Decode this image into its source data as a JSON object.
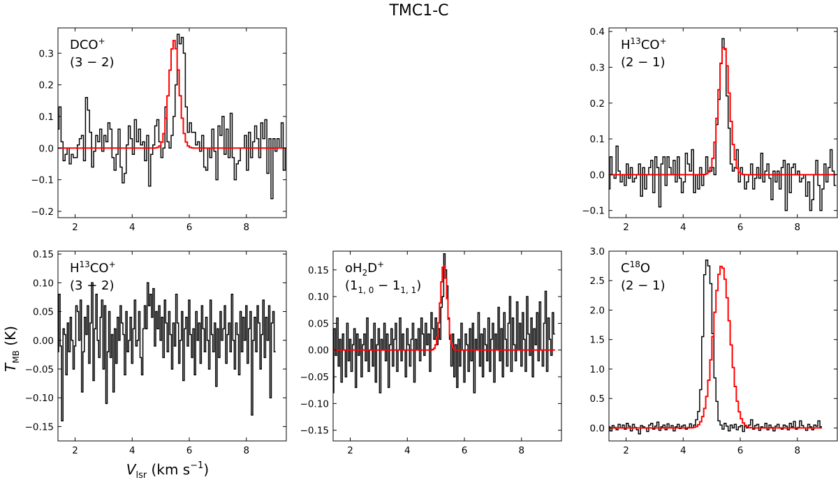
{
  "figure_title": "TMC1-C",
  "axes": {
    "xlabel_main": "V",
    "xlabel_sub": "lsr",
    "xlabel_units": " (km s",
    "xlabel_exp": "−1",
    "xlabel_close": ")",
    "ylabel_main": "T",
    "ylabel_sub": "MB",
    "ylabel_units": " (K)"
  },
  "colors": {
    "data": "#000000",
    "fit": "#ff0000"
  },
  "chart_data": [
    {
      "id": "dco",
      "type": "line",
      "title_parts": [
        "DCO",
        "+"
      ],
      "transition": "(3 − 2)",
      "xlim": [
        1.4,
        9.4
      ],
      "ylim": [
        -0.22,
        0.38
      ],
      "xticks": [
        2,
        4,
        6,
        8
      ],
      "yticks": [
        -0.2,
        -0.1,
        0.0,
        0.1,
        0.2,
        0.3
      ],
      "ytick_labels": [
        "−0.2",
        "−0.1",
        "0.0",
        "0.1",
        "0.2",
        "0.3"
      ],
      "xtick_labels": [
        "2",
        "4",
        "6",
        "8"
      ],
      "x_start": 1.4,
      "x_step": 0.0714,
      "values": [
        0.06,
        0.13,
        0.02,
        -0.04,
        -0.02,
        0.0,
        -0.05,
        -0.02,
        -0.03,
        -0.03,
        0.01,
        0.03,
        0.04,
        -0.04,
        0.16,
        0.12,
        0.05,
        -0.06,
        -0.01,
        0.04,
        0.02,
        0.06,
        -0.01,
        0.04,
        0.02,
        0.08,
        0.06,
        -0.03,
        -0.07,
        -0.02,
        0.06,
        -0.06,
        -0.11,
        -0.08,
        0.01,
        0.07,
        0.03,
        -0.02,
        0.09,
        0.02,
        0.06,
        0.01,
        0.02,
        -0.04,
        0.04,
        -0.12,
        -0.02,
        0.01,
        0.07,
        0.09,
        0.02,
        -0.03,
        0.0,
        0.13,
        0.02,
        0.0,
        0.04,
        0.1,
        0.2,
        0.36,
        0.33,
        0.35,
        0.3,
        0.13,
        0.05,
        0.08,
        0.05,
        0.05,
        0.01,
        0.02,
        -0.01,
        0.04,
        -0.06,
        -0.07,
        0.0,
        -0.03,
        0.06,
        -0.01,
        -0.1,
        0.07,
        0.04,
        0.1,
        -0.02,
        0.06,
        -0.03,
        0.11,
        -0.03,
        -0.1,
        -0.05,
        -0.04,
        0.0,
        0.0,
        0.04,
        -0.07,
        0.05,
        -0.03,
        0.02,
        0.07,
        0.03,
        -0.03,
        0.08,
        0.03,
        0.09,
        -0.08,
        0.03,
        -0.16,
        0.03,
        -0.01,
        0.03,
        0.0,
        0.08,
        -0.07,
        0.0,
        -0.03,
        0.13,
        0.02
      ],
      "fit": {
        "amplitude": 0.34,
        "center": 5.47,
        "fwhm": 0.42,
        "baseline": 0.0
      }
    },
    {
      "id": "h13co-21",
      "type": "line",
      "title_parts": [
        "H",
        "13",
        "CO",
        "+"
      ],
      "transition": "(2 − 1)",
      "xlim": [
        1.4,
        9.4
      ],
      "ylim": [
        -0.12,
        0.41
      ],
      "xticks": [
        2,
        4,
        6,
        8
      ],
      "yticks": [
        -0.1,
        0.0,
        0.1,
        0.2,
        0.3,
        0.4
      ],
      "ytick_labels": [
        "−0.1",
        "0.0",
        "0.1",
        "0.2",
        "0.3",
        "0.4"
      ],
      "xtick_labels": [
        "2",
        "4",
        "6",
        "8"
      ],
      "x_start": 1.4,
      "x_step": 0.0714,
      "values": [
        -0.04,
        0.05,
        0.0,
        -0.01,
        0.08,
        0.01,
        -0.02,
        0.0,
        -0.03,
        0.03,
        -0.01,
        0.02,
        -0.02,
        -0.01,
        0.0,
        0.03,
        -0.06,
        0.02,
        -0.04,
        0.0,
        0.02,
        0.04,
        -0.05,
        0.05,
        0.02,
        -0.09,
        0.03,
        0.05,
        -0.03,
        0.05,
        0.02,
        0.0,
        0.04,
        -0.02,
        0.05,
        -0.01,
        -0.05,
        -0.02,
        0.06,
        0.03,
        0.01,
        0.07,
        -0.05,
        0.0,
        -0.04,
        0.02,
        -0.03,
        0.0,
        0.05,
        0.01,
        0.01,
        0.02,
        0.0,
        0.14,
        0.21,
        0.31,
        0.38,
        0.35,
        0.22,
        0.13,
        0.03,
        0.01,
        0.02,
        0.07,
        -0.02,
        0.02,
        0.0,
        -0.04,
        -0.02,
        0.0,
        0.03,
        -0.04,
        -0.01,
        0.02,
        -0.01,
        0.06,
        -0.02,
        0.01,
        0.03,
        -0.01,
        -0.07,
        0.01,
        -0.02,
        0.01,
        -0.04,
        0.02,
        0.04,
        -0.1,
        0.03,
        -0.05,
        0.02,
        0.03,
        0.0,
        0.01,
        -0.02,
        -0.01,
        0.0,
        -0.06,
        -0.02,
        -0.1,
        -0.07,
        0.0,
        0.04,
        -0.03,
        -0.1,
        -0.04,
        0.03,
        -0.02,
        0.02,
        0.07,
        0.01,
        -0.03
      ],
      "fit": {
        "amplitude": 0.36,
        "center": 5.43,
        "fwhm": 0.45,
        "baseline": 0.0
      }
    },
    {
      "id": "h13co-32",
      "type": "line",
      "title_parts": [
        "H",
        "13",
        "CO",
        "+"
      ],
      "transition": "(3 − 2)",
      "xlim": [
        1.4,
        9.4
      ],
      "ylim": [
        -0.175,
        0.155
      ],
      "xticks": [
        2,
        4,
        6,
        8
      ],
      "yticks": [
        -0.15,
        -0.1,
        -0.05,
        0.0,
        0.05,
        0.1,
        0.15
      ],
      "ytick_labels": [
        "−0.15",
        "−0.10",
        "−0.05",
        "0.00",
        "0.05",
        "0.10",
        "0.15"
      ],
      "xtick_labels": [
        "2",
        "4",
        "6",
        "8"
      ],
      "x_start": 1.4,
      "x_step": 0.05,
      "values": [
        -0.02,
        0.08,
        -0.01,
        -0.14,
        0.02,
        0.01,
        -0.06,
        0.03,
        -0.02,
        0.04,
        0.0,
        -0.05,
        -0.01,
        0.06,
        0.05,
        0.0,
        0.07,
        -0.09,
        -0.02,
        0.04,
        0.01,
        0.06,
        -0.04,
        0.03,
        0.1,
        -0.07,
        0.02,
        0.08,
        0.0,
        -0.03,
        0.04,
        0.07,
        -0.05,
        0.06,
        -0.11,
        -0.02,
        0.05,
        -0.03,
        0.01,
        -0.09,
        0.02,
        -0.04,
        0.04,
        0.0,
        0.06,
        0.03,
        0.01,
        -0.06,
        0.05,
        -0.02,
        0.0,
        0.04,
        -0.04,
        0.02,
        0.07,
        -0.01,
        0.0,
        0.05,
        -0.03,
        -0.06,
        0.02,
        0.06,
        0.02,
        0.1,
        0.06,
        0.08,
        0.04,
        0.09,
        -0.01,
        0.05,
        0.02,
        0.06,
        0.0,
        0.04,
        -0.03,
        0.07,
        0.03,
        -0.02,
        0.05,
        0.01,
        -0.05,
        0.03,
        -0.01,
        0.08,
        0.03,
        -0.04,
        0.0,
        0.05,
        -0.07,
        0.02,
        0.04,
        -0.01,
        0.07,
        0.01,
        -0.03,
        0.02,
        -0.06,
        0.05,
        0.0,
        0.03,
        -0.04,
        0.06,
        0.02,
        -0.02,
        0.04,
        0.0,
        -0.05,
        0.07,
        0.01,
        -0.02,
        0.03,
        -0.08,
        0.02,
        -0.03,
        0.05,
        0.0,
        0.02,
        0.06,
        -0.04,
        0.01,
        0.03,
        -0.02,
        0.08,
        0.0,
        -0.05,
        0.03,
        0.01,
        -0.06,
        0.05,
        -0.02,
        0.04,
        0.0,
        0.06,
        -0.04,
        0.02,
        0.05,
        -0.13,
        0.0,
        0.04,
        -0.02,
        0.06,
        0.03,
        -0.05,
        0.01,
        0.07,
        -0.03,
        0.04,
        0.0,
        0.06,
        -0.1,
        0.03,
        0.05,
        -0.02
      ],
      "fit": null
    },
    {
      "id": "oh2d",
      "type": "line",
      "title_parts": [
        "oH",
        "2",
        "D",
        "+"
      ],
      "transition_parts": [
        "(1",
        "1, 0",
        " − 1",
        "1, 1",
        ")"
      ],
      "xlim": [
        1.4,
        9.4
      ],
      "ylim": [
        -0.17,
        0.185
      ],
      "xticks": [
        2,
        4,
        6,
        8
      ],
      "yticks": [
        -0.15,
        -0.1,
        -0.05,
        0.0,
        0.05,
        0.1,
        0.15
      ],
      "ytick_labels": [
        "−0.15",
        "−0.10",
        "−0.05",
        "0.00",
        "0.05",
        "0.10",
        "0.15"
      ],
      "xtick_labels": [
        "2",
        "4",
        "6",
        "8"
      ],
      "x_start": 1.4,
      "x_step": 0.05,
      "values": [
        -0.08,
        0.04,
        -0.01,
        0.06,
        -0.03,
        0.02,
        -0.06,
        0.03,
        0.0,
        -0.05,
        0.05,
        -0.02,
        0.02,
        -0.04,
        0.01,
        0.04,
        -0.07,
        0.03,
        -0.01,
        0.02,
        -0.05,
        0.01,
        0.03,
        -0.02,
        0.06,
        -0.04,
        0.0,
        0.02,
        -0.03,
        0.05,
        -0.06,
        0.01,
        0.04,
        -0.08,
        0.02,
        0.0,
        0.05,
        -0.02,
        0.03,
        -0.07,
        0.01,
        0.04,
        -0.03,
        0.02,
        0.05,
        -0.04,
        0.0,
        0.06,
        -0.02,
        0.03,
        0.0,
        -0.05,
        0.04,
        0.01,
        -0.03,
        0.02,
        0.05,
        -0.06,
        0.02,
        0.0,
        0.04,
        -0.02,
        0.06,
        0.03,
        -0.01,
        0.05,
        0.01,
        0.03,
        -0.04,
        0.07,
        0.04,
        0.02,
        0.06,
        0.01,
        0.04,
        0.02,
        0.08,
        0.1,
        0.18,
        0.15,
        0.12,
        0.06,
        0.02,
        -0.03,
        0.03,
        -0.05,
        0.01,
        -0.07,
        0.02,
        -0.03,
        0.05,
        0.0,
        -0.06,
        0.03,
        0.01,
        -0.04,
        0.04,
        -0.02,
        0.05,
        -0.08,
        0.02,
        0.0,
        0.07,
        -0.03,
        0.03,
        -0.05,
        0.04,
        0.01,
        -0.02,
        0.06,
        -0.04,
        0.02,
        0.05,
        -0.06,
        0.03,
        0.0,
        0.08,
        -0.02,
        0.04,
        -0.05,
        0.07,
        0.02,
        -0.03,
        0.05,
        0.1,
        -0.04,
        0.06,
        0.01,
        -0.02,
        0.09,
        0.0,
        0.05,
        -0.03,
        0.07,
        0.02,
        -0.04,
        0.1,
        0.03,
        -0.01,
        0.06,
        -0.05,
        0.04,
        0.01,
        0.07,
        -0.02,
        0.09,
        0.0,
        -0.03,
        0.05,
        0.11,
        -0.04,
        0.06,
        0.02,
        -0.01,
        0.07,
        0.03
      ],
      "fit": {
        "amplitude": 0.16,
        "center": 5.28,
        "fwhm": 0.28,
        "baseline": 0.0
      }
    },
    {
      "id": "c18o",
      "type": "line",
      "title_parts": [
        "C",
        "18",
        "O"
      ],
      "transition": "(2 − 1)",
      "xlim": [
        1.4,
        9.4
      ],
      "ylim": [
        -0.22,
        3.0
      ],
      "xticks": [
        2,
        4,
        6,
        8
      ],
      "yticks": [
        0.0,
        0.5,
        1.0,
        1.5,
        2.0,
        2.5,
        3.0
      ],
      "ytick_labels": [
        "0.0",
        "0.5",
        "1.0",
        "1.5",
        "2.0",
        "2.5",
        "3.0"
      ],
      "xtick_labels": [
        "2",
        "4",
        "6",
        "8"
      ],
      "x_start": 1.4,
      "x_step": 0.0714,
      "values": [
        0.02,
        -0.05,
        0.04,
        0.01,
        -0.03,
        0.06,
        0.0,
        0.05,
        -0.02,
        0.08,
        0.03,
        -0.05,
        0.06,
        0.01,
        -0.03,
        -0.1,
        0.04,
        0.02,
        0.0,
        -0.06,
        0.05,
        0.08,
        -0.02,
        0.03,
        0.1,
        -0.04,
        0.02,
        0.05,
        -0.03,
        0.07,
        0.0,
        0.04,
        -0.05,
        0.02,
        0.06,
        -0.01,
        0.03,
        0.05,
        -0.02,
        0.01,
        0.07,
        0.0,
        0.05,
        0.14,
        0.28,
        0.65,
        1.55,
        2.6,
        2.85,
        2.75,
        2.45,
        1.6,
        0.85,
        0.45,
        0.12,
        0.05,
        -0.02,
        0.08,
        0.03,
        -0.05,
        0.05,
        0.0,
        0.06,
        -0.03,
        0.02,
        0.04,
        -0.06,
        0.03,
        0.0,
        0.05,
        0.14,
        -0.02,
        0.04,
        0.06,
        -0.04,
        0.02,
        0.0,
        0.08,
        -0.03,
        0.05,
        0.01,
        -0.05,
        0.03,
        0.06,
        0.0,
        -0.02,
        0.05,
        0.03,
        -0.03,
        0.08,
        0.02,
        0.11,
        -0.02,
        0.01,
        0.12,
        0.04,
        0.0,
        -0.04,
        0.06,
        0.02,
        -0.03,
        0.05,
        0.03,
        0.12,
        0.02
      ],
      "fit": {
        "amplitude": 2.75,
        "center": 5.35,
        "fwhm": 0.68,
        "baseline": 0.0
      }
    }
  ]
}
